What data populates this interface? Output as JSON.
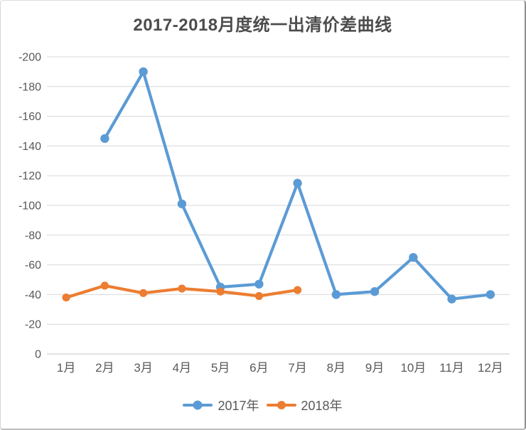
{
  "chart_data": {
    "type": "line",
    "title": "2017-2018月度统一出清价差曲线",
    "categories": [
      "1月",
      "2月",
      "3月",
      "4月",
      "5月",
      "6月",
      "7月",
      "8月",
      "9月",
      "10月",
      "11月",
      "12月"
    ],
    "series": [
      {
        "name": "2017年",
        "color": "#5B9BD5",
        "values": [
          null,
          -145,
          -190,
          -101,
          -45,
          -47,
          -115,
          -40,
          -42,
          -65,
          -37,
          -40
        ]
      },
      {
        "name": "2018年",
        "color": "#ED7D31",
        "values": [
          -38,
          -46,
          -41,
          -44,
          -42,
          -39,
          -43,
          null,
          null,
          null,
          null,
          null
        ]
      }
    ],
    "y_axis": {
      "min": -200,
      "max": 0,
      "tick_step": 20,
      "inverted": true,
      "ticks": [
        -200,
        -180,
        -160,
        -140,
        -120,
        -100,
        -80,
        -60,
        -40,
        -20,
        0
      ]
    },
    "xlabel": "",
    "ylabel": "",
    "grid": true,
    "legend_position": "bottom",
    "colors": {
      "text": "#595959",
      "title_text": "#4c4c4c",
      "gridline": "#d9d9d9",
      "axis_line": "#c6c6c6",
      "background": "#ffffff"
    }
  }
}
